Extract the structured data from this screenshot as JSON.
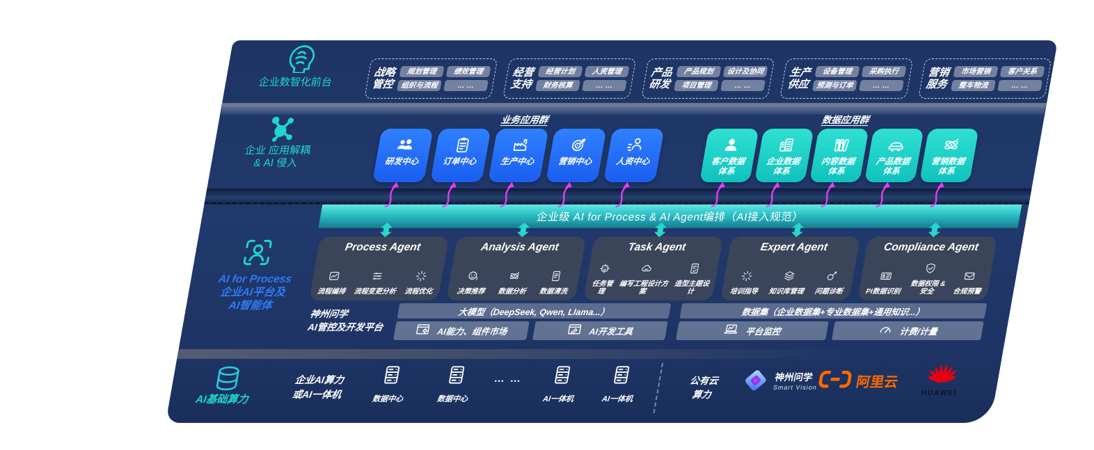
{
  "palette": {
    "navy": "#1e3568",
    "accent_cyan": "#1fd6cd",
    "accent_blue": "#2e7bf3",
    "box_blue": "#2374f5",
    "box_teal": "#19cfc6",
    "banner_teal": "#2fc9cc",
    "magenta": "#e43df2",
    "ali_orange": "#ff6a00",
    "huawei_red": "#e60012"
  },
  "front_office": {
    "label": "企业数智化前台",
    "icon": "brain-icon",
    "groups": [
      {
        "title": "战略\n管控",
        "chips": [
          "规划管理",
          "绩效管理",
          "组织与流程",
          "… …"
        ]
      },
      {
        "title": "经营\n支持",
        "chips": [
          "经营计划",
          "人资管理",
          "财务核算",
          "… …"
        ]
      },
      {
        "title": "产品\n研发",
        "chips": [
          "产品规划",
          "设计及协同",
          "项目管理",
          "… …"
        ]
      },
      {
        "title": "生产\n供应",
        "chips": [
          "设备管理",
          "采购执行",
          "预测与订单",
          "… …"
        ]
      },
      {
        "title": "营销\n服务",
        "chips": [
          "市场营销",
          "客户关系",
          "整车物流",
          "… …"
        ]
      }
    ]
  },
  "app_layer": {
    "label": "企业 应用解耦\n& AI 侵入",
    "icon": "molecule-icon",
    "business_group": {
      "title": "业务应用群",
      "boxes": [
        {
          "label": "研发中心",
          "icon": "team-icon"
        },
        {
          "label": "订单中心",
          "icon": "clipboard-icon"
        },
        {
          "label": "生产中心",
          "icon": "factory-icon"
        },
        {
          "label": "营销中心",
          "icon": "target-icon"
        },
        {
          "label": "人资中心",
          "icon": "hr-icon"
        }
      ]
    },
    "data_group": {
      "title": "数据应用群",
      "boxes": [
        {
          "label": "客户数据\n体系",
          "icon": "customer-icon"
        },
        {
          "label": "企业数据\n体系",
          "icon": "building-icon"
        },
        {
          "label": "内容数据\n体系",
          "icon": "books-icon"
        },
        {
          "label": "产品数据\n体系",
          "icon": "car-icon"
        },
        {
          "label": "营销数据\n体系",
          "icon": "atom-icon"
        }
      ]
    }
  },
  "banner": {
    "text": "企业级 AI for Process & AI Agent编排（AI接入规范）"
  },
  "ai_layer": {
    "label": "AI for Process\n企业AI平台及\nAI智能体",
    "icon": "scan-person-icon",
    "agents": [
      {
        "title": "Process Agent",
        "items": [
          {
            "label": "流程编排",
            "icon": "chart-icon"
          },
          {
            "label": "流程变更分析",
            "icon": "sliders-icon"
          },
          {
            "label": "流程优化",
            "icon": "spark-icon"
          }
        ]
      },
      {
        "title": "Analysis Agent",
        "items": [
          {
            "label": "决策推荐",
            "icon": "face-icon"
          },
          {
            "label": "数据分析",
            "icon": "atom-icon"
          },
          {
            "label": "数据清洗",
            "icon": "doc-icon"
          }
        ]
      },
      {
        "title": "Task Agent",
        "items": [
          {
            "label": "任务管理",
            "icon": "grid-icon"
          },
          {
            "label": "编写工程设计方案",
            "icon": "cloud-icon"
          },
          {
            "label": "造型主题设计",
            "icon": "doc-check-icon"
          }
        ]
      },
      {
        "title": "Expert Agent",
        "items": [
          {
            "label": "培训指导",
            "icon": "spark-icon"
          },
          {
            "label": "知识库管理",
            "icon": "layers-icon"
          },
          {
            "label": "问题诊断",
            "icon": "diagnose-icon"
          }
        ]
      },
      {
        "title": "Compliance Agent",
        "items": [
          {
            "label": "PI数据识别",
            "icon": "idcard-icon"
          },
          {
            "label": "数据权限 &\n安全",
            "icon": "shield-icon"
          },
          {
            "label": "合规预警",
            "icon": "mail-icon"
          }
        ]
      }
    ],
    "platform": {
      "label": "神州问学\nAI管控及开发平台",
      "model_bar": "大模型（DeepSeek, Qwen, Llama...）",
      "model_cells": [
        {
          "label": "AI能力、组件市场",
          "icon": "market-icon"
        },
        {
          "label": "AI开发工具",
          "icon": "tools-icon"
        }
      ],
      "data_bar": "数据集（企业数据集+专业数据集+通用知识...）",
      "data_cells": [
        {
          "label": "平台监控",
          "icon": "monitor-icon"
        },
        {
          "label": "计费/计量",
          "icon": "gauge-icon"
        }
      ]
    }
  },
  "infra": {
    "label": "AI基础算力",
    "icon": "database-icon",
    "compute_label": "企业AI算力\n或AI一体机",
    "nodes": [
      {
        "label": "数据中心",
        "icon": "server-icon"
      },
      {
        "label": "数据中心",
        "icon": "server-icon"
      },
      {
        "label": "… …",
        "icon": ""
      },
      {
        "label": "AI一体机",
        "icon": "server-icon"
      },
      {
        "label": "AI一体机",
        "icon": "server-icon"
      }
    ],
    "public_cloud": "公有云\n算力",
    "vendors": [
      {
        "name": "神州问学",
        "sub": "Smart Vision",
        "icon": "smartvision-logo"
      },
      {
        "name": "阿里云",
        "icon": "alicloud-logo"
      },
      {
        "name": "HUAWEI",
        "icon": "huawei-logo"
      }
    ]
  }
}
